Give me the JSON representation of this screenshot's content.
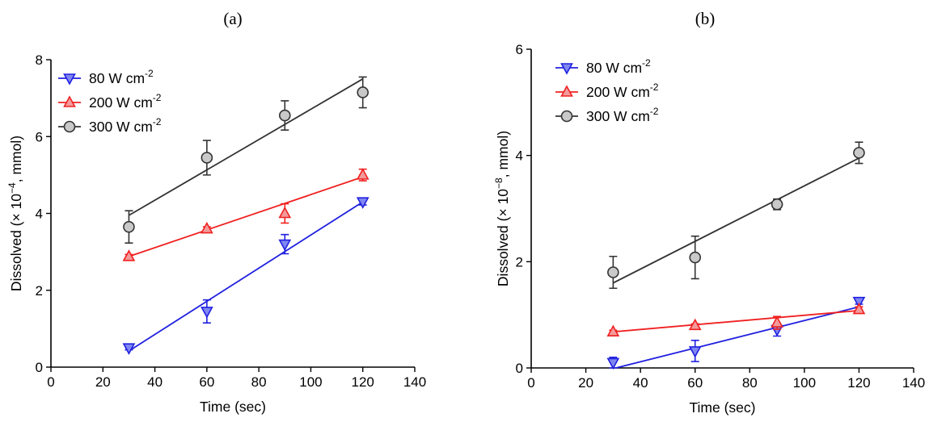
{
  "colors": {
    "blue": "#2020e0",
    "blue_fill": "#7f86f0",
    "red": "#f02020",
    "red_fill": "#f39a9a",
    "gray": "#333333",
    "gray_fill": "#c9c9c9"
  },
  "chart_data": [
    {
      "type": "scatter",
      "title": "(a)",
      "xlabel": "Time (sec)",
      "ylabel_prefix": "Dissolved (",
      "ylabel_mult": "× 10",
      "ylabel_exp": "−4",
      "ylabel_suffix": ", mmol)",
      "xlim": [
        0,
        140
      ],
      "ylim": [
        0,
        8
      ],
      "xticks": [
        "0",
        "20",
        "40",
        "60",
        "80",
        "100",
        "120",
        "140"
      ],
      "yticks": [
        "0",
        "2",
        "4",
        "6",
        "8"
      ],
      "legend": "top-left",
      "x": [
        30,
        60,
        90,
        120
      ],
      "series": [
        {
          "key": "s80",
          "name": "80 W cm",
          "name_exp": "-2",
          "marker": "triangle-down",
          "color": "blue",
          "values": [
            0.5,
            1.45,
            3.2,
            4.3
          ],
          "err": [
            0.05,
            0.3,
            0.25,
            0.08
          ],
          "fit": [
            30,
            0.42,
            120,
            4.3
          ]
        },
        {
          "key": "s200",
          "name": "200 W cm",
          "name_exp": "-2",
          "marker": "triangle-up",
          "color": "red",
          "values": [
            2.88,
            3.6,
            4.0,
            5.0
          ],
          "err": [
            0.05,
            0.05,
            0.25,
            0.15
          ],
          "fit": [
            30,
            2.88,
            120,
            4.95
          ]
        },
        {
          "key": "s300",
          "name": "300 W cm",
          "name_exp": "-2",
          "marker": "circle",
          "color": "gray",
          "values": [
            3.65,
            5.45,
            6.55,
            7.15
          ],
          "err": [
            0.42,
            0.45,
            0.38,
            0.4
          ],
          "fit": [
            30,
            3.95,
            120,
            7.5
          ]
        }
      ]
    },
    {
      "type": "scatter",
      "title": "(b)",
      "xlabel": "Time (sec)",
      "ylabel_prefix": "Dissolved (",
      "ylabel_mult": "× 10",
      "ylabel_exp": "−8",
      "ylabel_suffix": ", mmol)",
      "xlim": [
        0,
        140
      ],
      "ylim": [
        0,
        6
      ],
      "xticks": [
        "0",
        "20",
        "40",
        "60",
        "80",
        "100",
        "120",
        "140"
      ],
      "yticks": [
        "0",
        "2",
        "4",
        "6"
      ],
      "legend": "top-left",
      "x": [
        30,
        60,
        90,
        120
      ],
      "series": [
        {
          "key": "s80",
          "name": "80 W cm",
          "name_exp": "-2",
          "marker": "triangle-down",
          "color": "blue",
          "values": [
            0.1,
            0.32,
            0.72,
            1.25
          ],
          "err": [
            0.1,
            0.2,
            0.12,
            0.05
          ],
          "fit": [
            31,
            0.0,
            120,
            1.15
          ]
        },
        {
          "key": "s200",
          "name": "200 W cm",
          "name_exp": "-2",
          "marker": "triangle-up",
          "color": "red",
          "values": [
            0.68,
            0.8,
            0.85,
            1.1
          ],
          "err": [
            0.03,
            0.03,
            0.12,
            0.05
          ],
          "fit": [
            30,
            0.68,
            120,
            1.08
          ]
        },
        {
          "key": "s300",
          "name": "300 W cm",
          "name_exp": "-2",
          "marker": "circle",
          "color": "gray",
          "values": [
            1.8,
            2.08,
            3.08,
            4.05
          ],
          "err": [
            0.3,
            0.4,
            0.1,
            0.2
          ],
          "fit": [
            30,
            1.6,
            120,
            3.95
          ]
        }
      ]
    }
  ]
}
